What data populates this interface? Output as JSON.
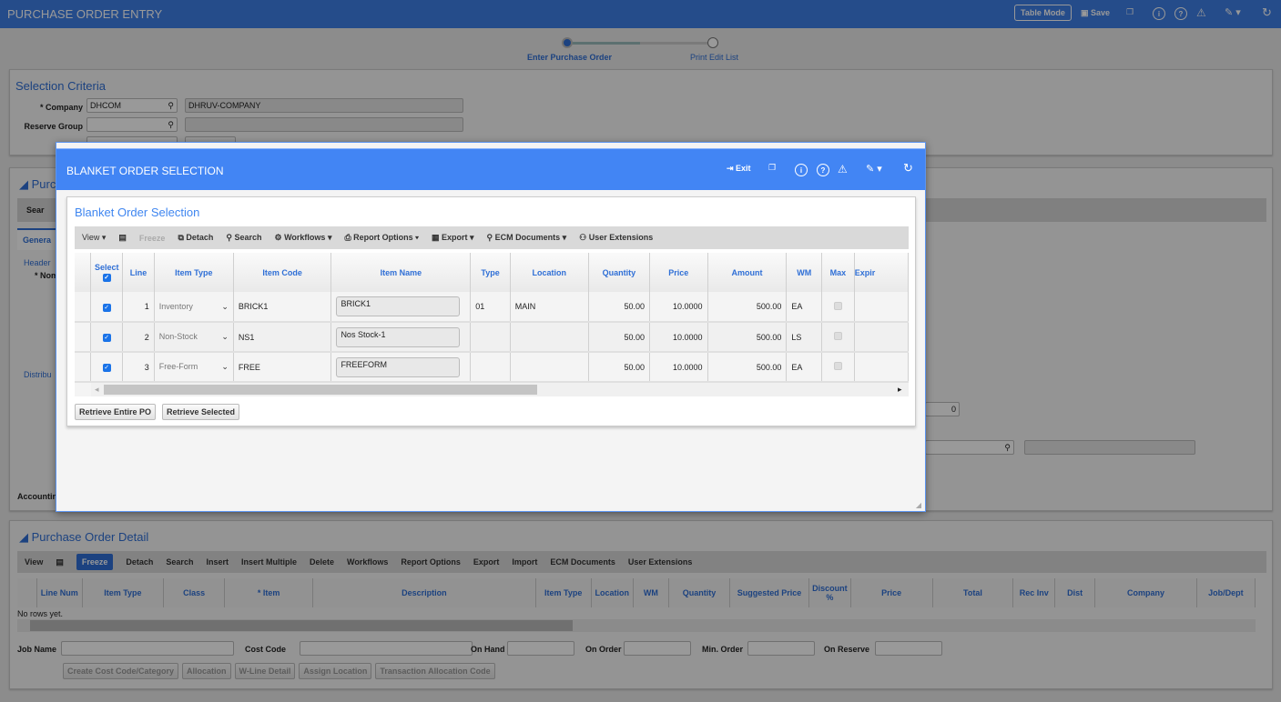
{
  "app": {
    "title": "PURCHASE ORDER ENTRY",
    "table_mode": "Table Mode",
    "save": "Save"
  },
  "stepper": {
    "steps": [
      "Enter Purchase Order",
      "Print Edit List"
    ],
    "active": 0
  },
  "selection": {
    "title": "Selection Criteria",
    "company_label": "* Company",
    "company_value": "DHCOM",
    "company_desc": "DHRUV-COMPANY",
    "reserve_label": "Reserve Group"
  },
  "po_panel": {
    "title_fragment": "Purc",
    "toolbar_fragment": "Sear",
    "tab_fragment": "Genera",
    "header_fragment": "Header",
    "nom_fragment": "* Nom",
    "distrib_fragment": "Distribu",
    "accounting_fragment": "Accountin",
    "right_value": "0"
  },
  "modal": {
    "title": "BLANKET ORDER SELECTION",
    "exit": "Exit",
    "section_title": "Blanket Order Selection",
    "toolbar": [
      "View",
      "Freeze",
      "Detach",
      "Search",
      "Workflows",
      "Report Options",
      "Export",
      "ECM Documents",
      "User Extensions"
    ],
    "columns": [
      "Select",
      "Line",
      "Item Type",
      "Item Code",
      "Item Name",
      "Type",
      "Location",
      "Quantity",
      "Price",
      "Amount",
      "WM",
      "Max",
      "Expir"
    ],
    "rows": [
      {
        "line": "1",
        "item_type": "Inventory",
        "item_code": "BRICK1",
        "item_name": "BRICK1",
        "type": "01",
        "location": "MAIN",
        "quantity": "50.00",
        "price": "10.0000",
        "amount": "500.00",
        "wm": "EA",
        "selected": true
      },
      {
        "line": "2",
        "item_type": "Non-Stock",
        "item_code": "NS1",
        "item_name": "Nos Stock-1",
        "type": "",
        "location": "",
        "quantity": "50.00",
        "price": "10.0000",
        "amount": "500.00",
        "wm": "LS",
        "selected": true
      },
      {
        "line": "3",
        "item_type": "Free-Form",
        "item_code": "FREE",
        "item_name": "FREEFORM",
        "type": "",
        "location": "",
        "quantity": "50.00",
        "price": "10.0000",
        "amount": "500.00",
        "wm": "EA",
        "selected": true
      }
    ],
    "retrieve_entire": "Retrieve Entire PO",
    "retrieve_selected": "Retrieve Selected"
  },
  "detail": {
    "title": "Purchase Order Detail",
    "toolbar": [
      "View",
      "Freeze",
      "Detach",
      "Search",
      "Insert",
      "Insert Multiple",
      "Delete",
      "Workflows",
      "Report Options",
      "Export",
      "Import",
      "ECM Documents",
      "User Extensions"
    ],
    "columns": [
      "Line Num",
      "Item Type",
      "Class",
      "* Item",
      "Description",
      "Item Type",
      "Location",
      "WM",
      "Quantity",
      "Suggested Price",
      "Discount %",
      "Price",
      "Total",
      "Rec Inv",
      "Dist",
      "Company",
      "Job/Dept"
    ],
    "empty": "No rows yet.",
    "fields": [
      "Job Name",
      "Cost Code",
      "On Hand",
      "On Order",
      "Min. Order",
      "On Reserve"
    ],
    "buttons": [
      "Create Cost Code/Category",
      "Allocation",
      "W-Line Detail",
      "Assign Location",
      "Transaction Allocation Code"
    ]
  },
  "colors": {
    "header": "#3f7fe6",
    "modal_header": "#4285f4",
    "accent": "#2f6fd6"
  }
}
